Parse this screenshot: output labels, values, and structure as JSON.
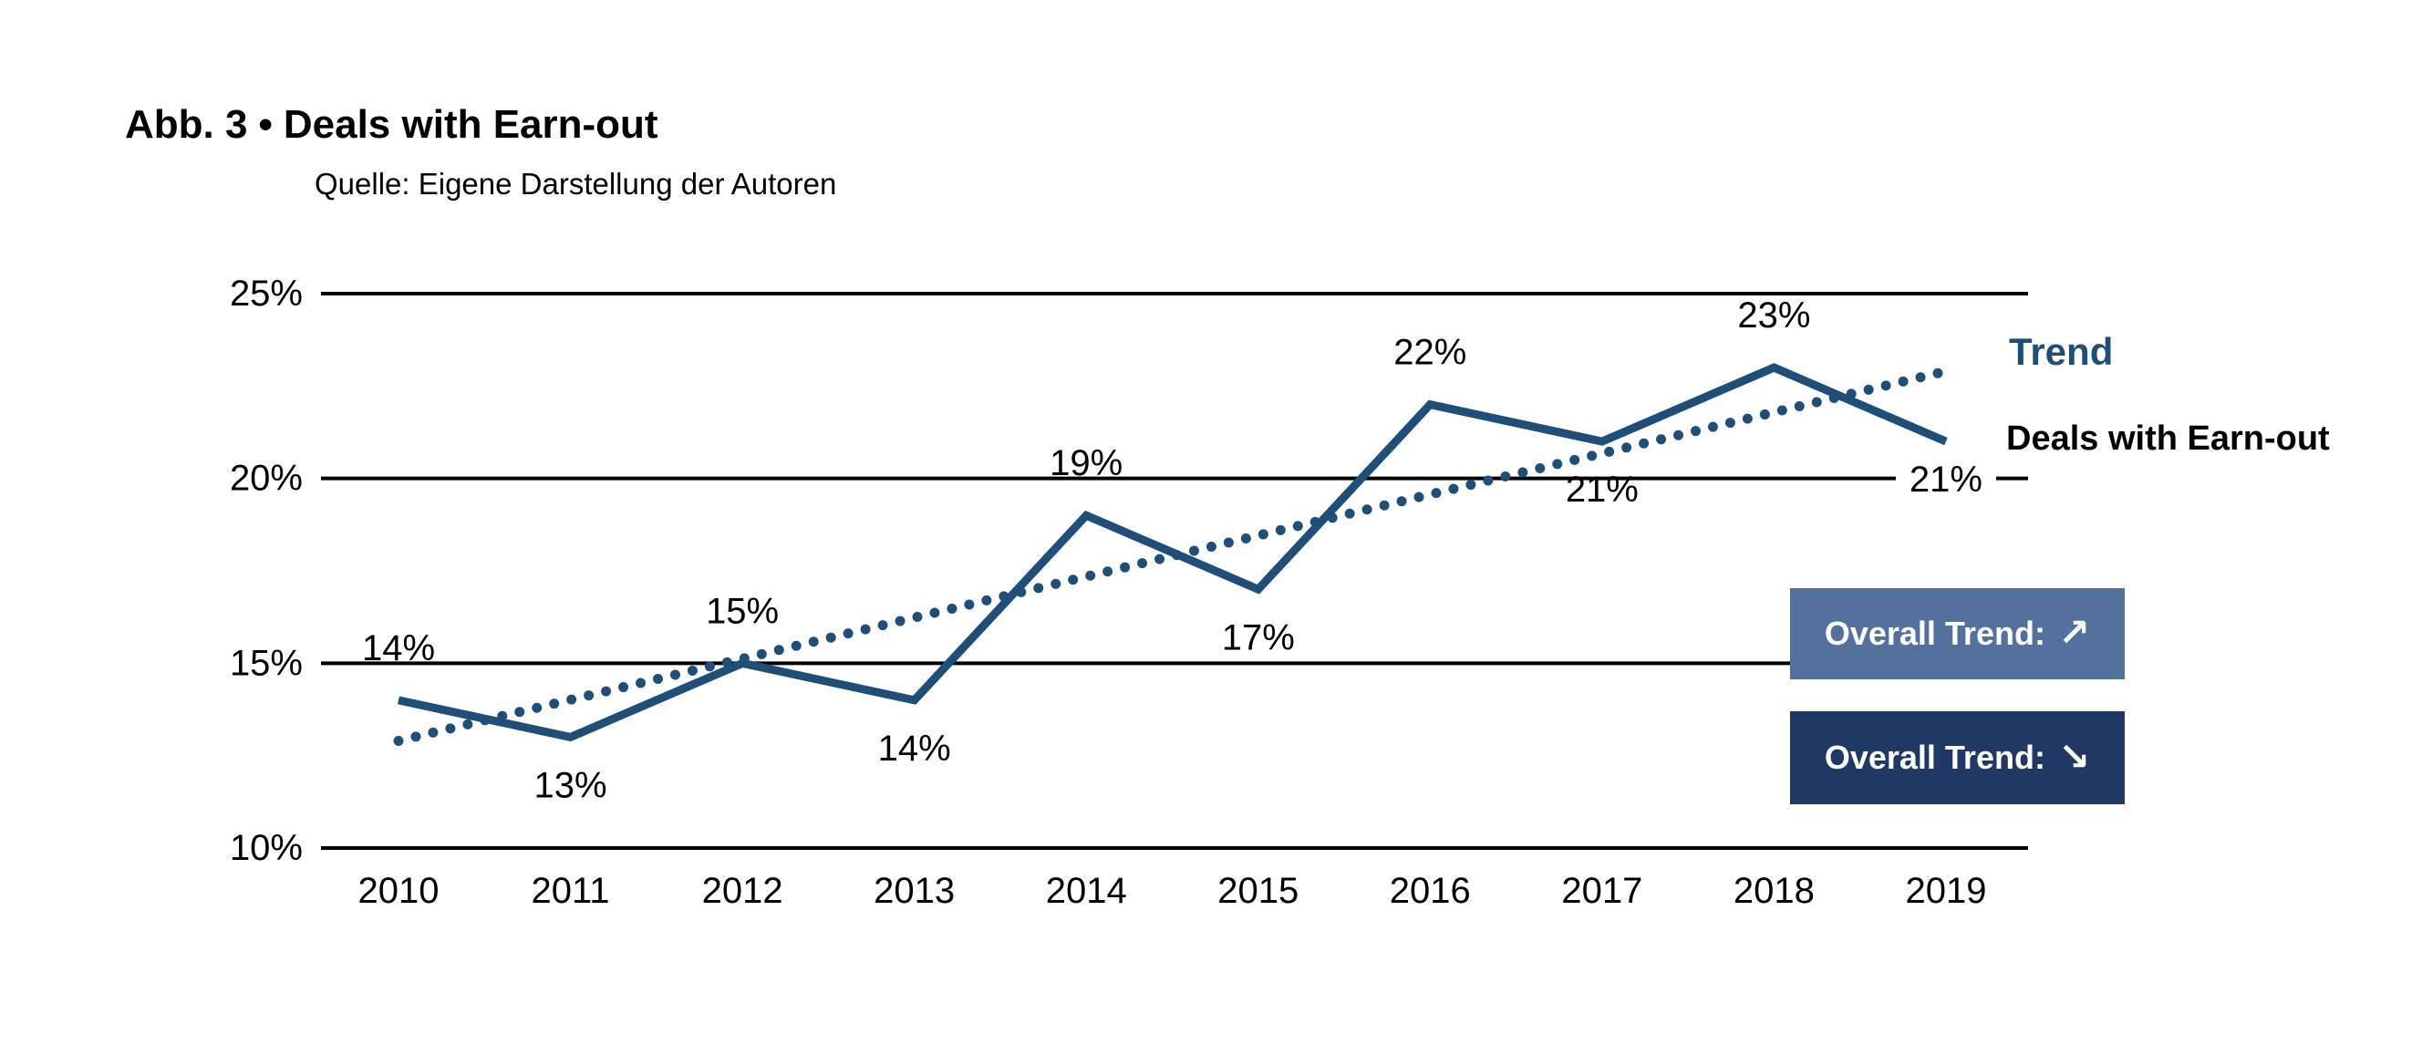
{
  "header": {
    "title_label": "Abb. 3",
    "title_separator": "•",
    "title": "Deals with Earn-out",
    "source": "Quelle: Eigene Darstellung der Autoren"
  },
  "legend": {
    "trend": "Trend",
    "series": "Deals with Earn-out"
  },
  "badges": {
    "up": {
      "label": "Overall Trend:",
      "arrow": "↗"
    },
    "down": {
      "label": "Overall Trend:",
      "arrow": "↘"
    }
  },
  "colors": {
    "series_line": "#1F4E79",
    "trend_dots": "#1F4E79",
    "trend_label_text": "#1F4E79",
    "badge_up_bg": "#54719E",
    "badge_down_bg": "#1F3864",
    "grid": "#000000",
    "label_text": "#000000",
    "background": "#FFFFFF"
  },
  "chart_data": {
    "type": "line",
    "title": "Deals with Earn-out",
    "categories": [
      "2010",
      "2011",
      "2012",
      "2013",
      "2014",
      "2015",
      "2016",
      "2017",
      "2018",
      "2019"
    ],
    "series": [
      {
        "name": "Deals with Earn-out",
        "style": "solid",
        "values": [
          14,
          13,
          15,
          14,
          19,
          17,
          22,
          21,
          23,
          21
        ],
        "data_labels": [
          "14%",
          "13%",
          "15%",
          "14%",
          "19%",
          "17%",
          "22%",
          "21%",
          "23%",
          "21%"
        ],
        "label_placement": [
          "above",
          "below",
          "above",
          "below",
          "above",
          "below",
          "above",
          "below",
          "above",
          "below-boxed"
        ]
      },
      {
        "name": "Trend",
        "style": "dotted",
        "fit": "linear",
        "start_value": 12.9,
        "end_value": 22.9
      }
    ],
    "xlabel": "",
    "ylabel": "",
    "yticks": [
      10,
      15,
      20,
      25
    ],
    "ytick_labels": [
      "10%",
      "15%",
      "20%",
      "25%"
    ],
    "ylim": [
      10,
      25
    ],
    "grid": "horizontal",
    "legend_position": "right"
  }
}
